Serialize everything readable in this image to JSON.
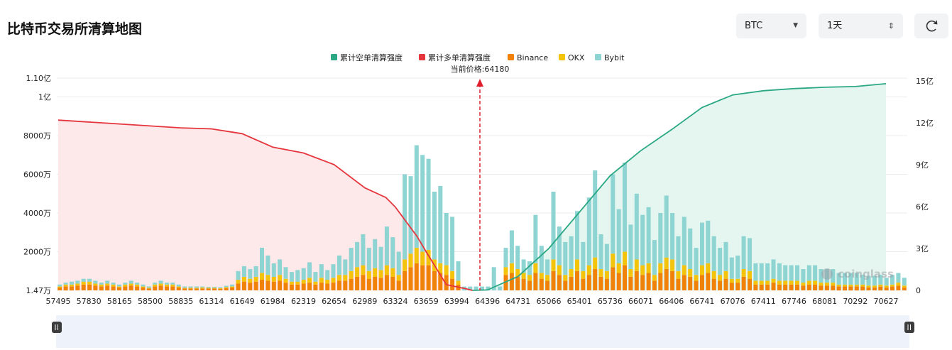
{
  "header": {
    "title": "比特币交易所清算地图"
  },
  "controls": {
    "symbol": {
      "value": "BTC",
      "icon": "caret-down-icon"
    },
    "interval": {
      "value": "1天",
      "icon": "updown-arrows-icon"
    },
    "refresh": {
      "icon": "refresh-icon"
    }
  },
  "watermark": "coinglass",
  "chart_data": {
    "type": "bar",
    "current_price_label": "当前价格:64180",
    "current_price": 64180,
    "legend": [
      {
        "name": "累计空单清算强度",
        "color": "#2aa783"
      },
      {
        "name": "累计多单清算强度",
        "color": "#e5353d"
      },
      {
        "name": "Binance",
        "color": "#f0820a"
      },
      {
        "name": "OKX",
        "color": "#f4c40d"
      },
      {
        "name": "Bybit",
        "color": "#8dd4d2"
      }
    ],
    "x_tick_labels": [
      "57495",
      "57830",
      "58165",
      "58500",
      "58835",
      "61314",
      "61649",
      "61984",
      "62319",
      "62654",
      "62989",
      "63324",
      "63659",
      "63994",
      "64396",
      "64731",
      "65066",
      "65401",
      "65736",
      "66071",
      "66406",
      "66741",
      "67076",
      "67411",
      "67746",
      "68081",
      "70292",
      "70627"
    ],
    "y_left": {
      "tick_labels": [
        "1.47万",
        "2000万",
        "4000万",
        "6000万",
        "8000万",
        "1亿",
        "1.10亿"
      ],
      "tick_values": [
        14700,
        20000000,
        40000000,
        60000000,
        80000000,
        100000000,
        110000000
      ],
      "range": [
        14700,
        110000000
      ]
    },
    "y_right": {
      "tick_labels": [
        "0",
        "3亿",
        "6亿",
        "9亿",
        "12亿",
        "15亿"
      ],
      "tick_values": [
        0,
        300000000,
        600000000,
        900000000,
        1200000000,
        1500000000
      ],
      "range": [
        0,
        1500000000
      ]
    },
    "bars": {
      "binance": [
        1.5,
        2,
        2,
        2.5,
        3,
        3,
        2.5,
        2,
        2.5,
        2,
        1.5,
        2,
        2.5,
        2,
        1.5,
        1,
        2,
        2.5,
        2,
        2,
        1.5,
        1,
        1,
        1,
        1,
        1,
        1,
        0.8,
        1.2,
        1.5,
        3.5,
        4.5,
        4,
        4.5,
        5.5,
        5,
        4.5,
        5,
        4,
        3,
        3,
        3.5,
        4,
        3,
        4,
        3.5,
        4,
        5,
        5,
        6,
        7,
        8,
        6,
        7,
        6.5,
        8,
        7,
        5,
        10,
        12,
        14,
        13,
        13,
        10,
        9,
        8,
        6,
        3,
        0,
        0,
        0,
        0,
        0,
        0,
        0,
        8,
        9,
        7,
        6,
        5,
        9,
        6,
        5,
        10,
        8,
        5,
        7,
        10,
        6,
        8,
        11,
        7,
        6,
        12,
        9,
        13,
        7,
        10,
        8,
        9,
        5,
        9,
        11,
        10,
        6,
        8,
        7,
        5,
        8,
        9,
        6,
        5,
        6,
        4,
        4,
        7,
        6,
        3,
        3,
        3,
        4,
        3,
        3,
        3,
        3,
        2.5,
        3,
        3,
        2.5,
        2.5,
        2.5,
        2,
        2,
        2,
        2,
        2,
        1.5,
        1.5,
        2,
        1.5,
        2,
        2.5,
        1.5
      ],
      "okx": [
        0.5,
        1,
        1,
        1,
        1.5,
        1.5,
        1,
        1,
        1,
        1,
        0.5,
        1,
        1,
        1,
        0.5,
        0.3,
        1,
        1,
        1,
        1,
        0.5,
        0.3,
        0.3,
        0.3,
        0.5,
        0.3,
        0.3,
        0.3,
        0.5,
        0.5,
        2,
        2.5,
        2,
        2.5,
        3.5,
        3,
        2.5,
        3,
        2,
        1.5,
        1.5,
        2,
        2.5,
        1.5,
        2.5,
        2,
        2.5,
        3,
        3,
        4,
        5,
        5,
        4,
        4.5,
        4,
        5,
        4.5,
        3,
        6,
        7,
        8,
        7,
        8,
        6,
        5,
        5,
        4,
        2,
        0,
        0,
        0,
        0,
        0,
        0,
        0,
        4,
        5,
        4,
        3,
        3,
        5,
        3,
        3,
        6,
        5,
        3,
        4,
        6,
        4,
        5,
        6,
        4,
        4,
        7,
        5,
        7,
        4,
        6,
        5,
        5,
        3,
        5,
        6,
        6,
        4,
        5,
        4,
        3,
        5,
        5,
        4,
        3,
        4,
        2,
        2,
        4,
        4,
        2,
        2,
        2,
        2,
        2,
        2,
        2,
        2,
        1.5,
        2,
        2,
        1.5,
        1.5,
        1.5,
        1,
        1,
        1,
        1,
        1,
        1,
        1,
        1,
        1,
        1,
        1.5,
        1
      ],
      "bybit": [
        1,
        1,
        1.5,
        1.5,
        1.5,
        1.5,
        1.5,
        1,
        1.5,
        1,
        1,
        1,
        1.5,
        1,
        1,
        0.7,
        1,
        1.5,
        1,
        1,
        1,
        0.7,
        0.7,
        0.7,
        0.5,
        0.5,
        0.5,
        0.5,
        0.7,
        1,
        4.5,
        5.5,
        5,
        5.5,
        13,
        10,
        7,
        8,
        6,
        5,
        6,
        6,
        8,
        5,
        7,
        5,
        7,
        10,
        8,
        12,
        13,
        16,
        12,
        15,
        12,
        20,
        16,
        12,
        44,
        40,
        53,
        50,
        47,
        35,
        40,
        27,
        28,
        10,
        2,
        2,
        2,
        2,
        2,
        12,
        2,
        10,
        17,
        12,
        7,
        7,
        25,
        14,
        8,
        35,
        20,
        17,
        17,
        25,
        15,
        35,
        45,
        18,
        14,
        41,
        28,
        46,
        23,
        34,
        26,
        29,
        18,
        26,
        32,
        24,
        18,
        25,
        21,
        14,
        22,
        22,
        18,
        14,
        15,
        11,
        12,
        17,
        17,
        9,
        9,
        9,
        10,
        9,
        8,
        8,
        8,
        7,
        8,
        8,
        7,
        7,
        7,
        6,
        6,
        6,
        6,
        5,
        5,
        5,
        5,
        4,
        5,
        5,
        4
      ]
    },
    "long_cumulative": [
      [
        57495,
        88000000
      ],
      [
        58165,
        86000000
      ],
      [
        58835,
        84000000
      ],
      [
        61314,
        83500000
      ],
      [
        61649,
        81000000
      ],
      [
        61984,
        74000000
      ],
      [
        62319,
        71000000
      ],
      [
        62654,
        65000000
      ],
      [
        62989,
        53000000
      ],
      [
        63220,
        48000000
      ],
      [
        63324,
        43000000
      ],
      [
        63559,
        28000000
      ],
      [
        63659,
        20000000
      ],
      [
        63880,
        3000000
      ],
      [
        64120,
        800000
      ],
      [
        64200,
        14700
      ]
    ],
    "short_cumulative": [
      [
        64200,
        0
      ],
      [
        64396,
        3000000
      ],
      [
        64731,
        100000000
      ],
      [
        65066,
        300000000
      ],
      [
        65401,
        560000000
      ],
      [
        65736,
        820000000
      ],
      [
        66071,
        1000000000
      ],
      [
        66406,
        1150000000
      ],
      [
        66741,
        1310000000
      ],
      [
        67076,
        1400000000
      ],
      [
        67411,
        1430000000
      ],
      [
        67746,
        1445000000
      ],
      [
        68081,
        1455000000
      ],
      [
        70292,
        1460000000
      ],
      [
        70627,
        1480000000
      ]
    ]
  }
}
